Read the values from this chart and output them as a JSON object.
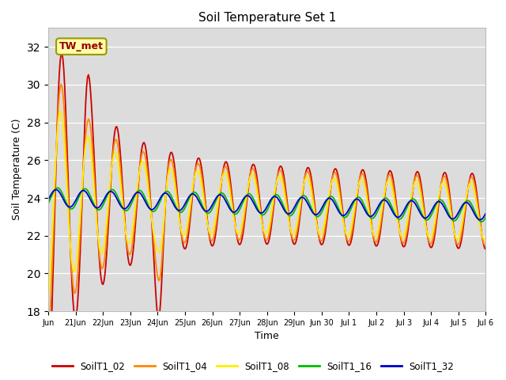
{
  "title": "Soil Temperature Set 1",
  "xlabel": "Time",
  "ylabel": "Soil Temperature (C)",
  "ylim": [
    18,
    33
  ],
  "yticks": [
    18,
    20,
    22,
    24,
    26,
    28,
    30,
    32
  ],
  "annotation": "TW_met",
  "bg_color": "#dcdcdc",
  "series_colors": [
    "#cc0000",
    "#ff8800",
    "#ffee00",
    "#00bb00",
    "#0000cc"
  ],
  "series_labels": [
    "SoilT1_02",
    "SoilT1_04",
    "SoilT1_08",
    "SoilT1_16",
    "SoilT1_32"
  ],
  "xtick_positions": [
    0,
    1,
    2,
    3,
    4,
    5,
    6,
    7,
    8,
    9,
    10,
    11,
    12,
    13,
    14,
    15,
    16
  ],
  "xtick_labels": [
    "Jun",
    "21Jun",
    "22Jun",
    "23Jun",
    "24Jun",
    "25Jun",
    "26Jun",
    "27Jun",
    "28Jun",
    "29Jun",
    "Jun 30",
    "Jul 1",
    "Jul 2",
    "Jul 3",
    "Jul 4",
    "Jul 5",
    "Jul 6"
  ],
  "n_points": 480
}
